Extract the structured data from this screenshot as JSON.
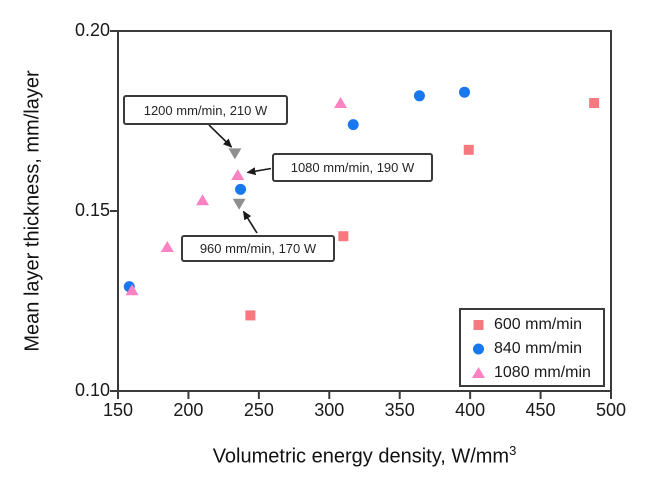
{
  "figure": {
    "xlabel_main": "Volumetric energy density, W/mm",
    "xlabel_sup": "3",
    "ylabel": "Mean layer thickness, mm/layer"
  },
  "colors": {
    "background": "#ffffff",
    "axis": "#3a3a3a",
    "text": "#262626",
    "arrow": "#1a1a1a",
    "series_600": "#f5797e",
    "series_840": "#1878ef",
    "series_1080": "#fa82c3",
    "annotated_gray": "#8f8f8f"
  },
  "chart_data": {
    "type": "scatter",
    "title": "",
    "xlabel": "Volumetric energy density, W/mm^3",
    "ylabel": "Mean layer thickness, mm/layer",
    "xlim": [
      150,
      500
    ],
    "ylim": [
      0.1,
      0.2
    ],
    "x_tick_values": [
      150,
      200,
      250,
      300,
      350,
      400,
      450,
      500
    ],
    "x_ticks": [
      "150",
      "200",
      "250",
      "300",
      "350",
      "400",
      "450",
      "500"
    ],
    "y_tick_values": [
      0.2,
      0.15,
      0.1
    ],
    "y_ticks": [
      "0.20",
      "0.15",
      "0.10"
    ],
    "grid": false,
    "legend_position": "lower-right",
    "series": [
      {
        "name": "600 mm/min",
        "marker": "square",
        "color": "#f5797e",
        "points": [
          [
            244,
            0.121
          ],
          [
            310,
            0.143
          ],
          [
            399,
            0.167
          ],
          [
            488,
            0.18
          ]
        ]
      },
      {
        "name": "840 mm/min",
        "marker": "circle",
        "color": "#1878ef",
        "points": [
          [
            158,
            0.129
          ],
          [
            237,
            0.156
          ],
          [
            317,
            0.174
          ],
          [
            364,
            0.182
          ],
          [
            396,
            0.183
          ]
        ]
      },
      {
        "name": "1080 mm/min",
        "marker": "triangle-up",
        "color": "#fa82c3",
        "points": [
          [
            160,
            0.128
          ],
          [
            185,
            0.14
          ],
          [
            210,
            0.153
          ],
          [
            235,
            0.16
          ],
          [
            308,
            0.18
          ]
        ]
      }
    ],
    "extra_points": [
      {
        "label": "1200 mm/min, 210 W",
        "marker": "triangle-down",
        "color": "#8f8f8f",
        "x": 233,
        "y": 0.166
      },
      {
        "label": "960 mm/min, 170 W",
        "marker": "triangle-down",
        "color": "#8f8f8f",
        "x": 236,
        "y": 0.152
      }
    ],
    "annotations": [
      {
        "text": "1200 mm/min, 210 W",
        "target_x": 233,
        "target_y": 0.166
      },
      {
        "text": "1080 mm/min, 190 W",
        "target_x": 235,
        "target_y": 0.16
      },
      {
        "text": "960 mm/min, 170 W",
        "target_x": 236,
        "target_y": 0.152
      }
    ]
  }
}
